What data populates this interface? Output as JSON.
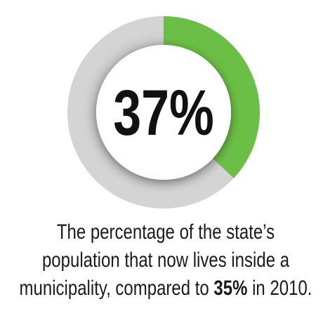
{
  "chart_data": {
    "type": "donut",
    "values": [
      37
    ],
    "value_labels": [
      "37%"
    ],
    "color": "#6cbf46",
    "track_color": "#c9c9c9",
    "caption_lines": [
      "The percentage of the state’s",
      "population that now lives inside a"
    ],
    "caption_last": {
      "before": "municipality, compared to ",
      "highlight": "35%",
      "after": " in 2010."
    }
  }
}
